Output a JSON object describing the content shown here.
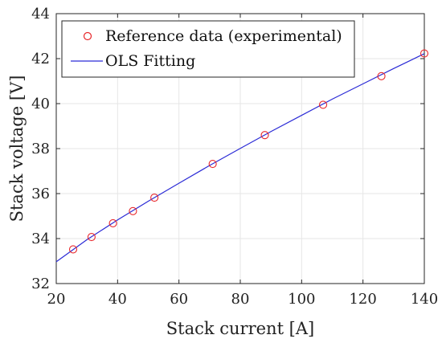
{
  "chart_data": {
    "type": "line",
    "title": "",
    "xlabel": "Stack current [A]",
    "ylabel": "Stack voltage [V]",
    "xlim": [
      20,
      140
    ],
    "ylim": [
      32,
      44
    ],
    "xticks": [
      20,
      40,
      60,
      80,
      100,
      120,
      140
    ],
    "yticks": [
      32,
      34,
      36,
      38,
      40,
      42,
      44
    ],
    "grid": true,
    "legend_position": "top-left",
    "series": [
      {
        "name": "Reference data (experimental)",
        "kind": "scatter",
        "marker": "circle-open",
        "color": "#e8262a",
        "x": [
          25.5,
          31.5,
          38.5,
          45,
          52,
          71,
          88,
          107,
          126,
          140
        ],
        "y": [
          33.52,
          34.07,
          34.68,
          35.22,
          35.82,
          37.32,
          38.6,
          39.95,
          41.22,
          42.23
        ]
      },
      {
        "name": "OLS Fitting",
        "kind": "line",
        "color": "#2b2bd6",
        "x": [
          20,
          30,
          40,
          50,
          60,
          70,
          80,
          90,
          100,
          110,
          120,
          130,
          140
        ],
        "y": [
          32.97,
          33.95,
          34.83,
          35.66,
          36.46,
          37.25,
          38.01,
          38.76,
          39.48,
          40.2,
          40.88,
          41.56,
          42.22
        ]
      }
    ]
  }
}
